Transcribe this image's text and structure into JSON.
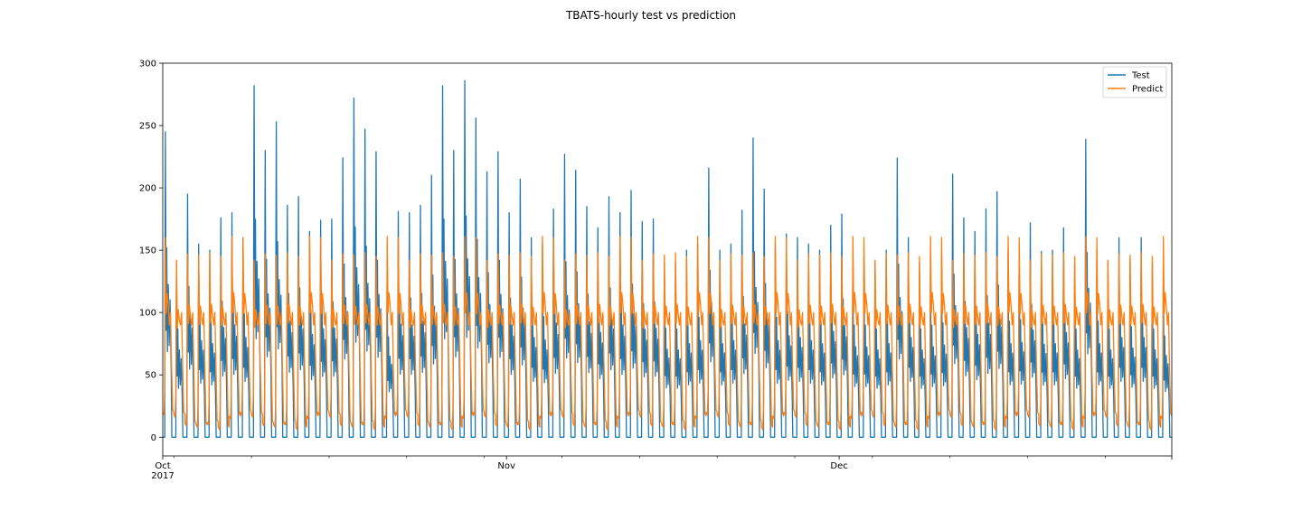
{
  "chart_data": {
    "type": "line",
    "title": "TBATS-hourly test vs prediction",
    "xlabel": "",
    "ylabel": "",
    "x_start": "2017-10-01",
    "x_end": "2017-12-31",
    "x_frequency": "hourly",
    "xlim": [
      "2017-10-01",
      "2017-12-31"
    ],
    "ylim": [
      -15,
      300
    ],
    "y_ticks": [
      0,
      50,
      100,
      150,
      200,
      250,
      300
    ],
    "x_major_ticks": [
      {
        "date": "2017-10-01",
        "label": "Oct",
        "sublabel": "2017"
      },
      {
        "date": "2017-11-01",
        "label": "Nov",
        "sublabel": ""
      },
      {
        "date": "2017-12-01",
        "label": "Dec",
        "sublabel": ""
      }
    ],
    "x_minor_tick_dates": [
      "2017-10-02",
      "2017-10-09",
      "2017-10-16",
      "2017-10-23",
      "2017-10-30",
      "2017-11-06",
      "2017-11-13",
      "2017-11-20",
      "2017-11-27",
      "2017-12-04",
      "2017-12-11",
      "2017-12-18",
      "2017-12-25"
    ],
    "grid": false,
    "legend": "top-right",
    "series": [
      {
        "name": "Test",
        "color": "#1f77b4",
        "description_daily_peaks": [
          245,
          140,
          195,
          155,
          150,
          176,
          180,
          160,
          282,
          230,
          253,
          186,
          193,
          165,
          174,
          175,
          224,
          272,
          247,
          229,
          130,
          181,
          180,
          186,
          210,
          282,
          230,
          286,
          256,
          213,
          229,
          180,
          207,
          160,
          156,
          183,
          227,
          214,
          185,
          168,
          193,
          180,
          198,
          173,
          175,
          141,
          140,
          150,
          155,
          216,
          150,
          155,
          182,
          240,
          199,
          155,
          163,
          160,
          155,
          150,
          170,
          179,
          145,
          145,
          140,
          150,
          224,
          160,
          140,
          145,
          148,
          211,
          176,
          165,
          183,
          197,
          150,
          152,
          172,
          149,
          150,
          168,
          140,
          239,
          150,
          140,
          160,
          143,
          160,
          140,
          131
        ],
        "description_daily_troughs_zero": true
      },
      {
        "name": "Predict",
        "color": "#ff7f0e",
        "description": "daily seasonal pattern: peak ~145-160, low ~10, weekly variation between 6 and 18 at troughs"
      }
    ]
  }
}
